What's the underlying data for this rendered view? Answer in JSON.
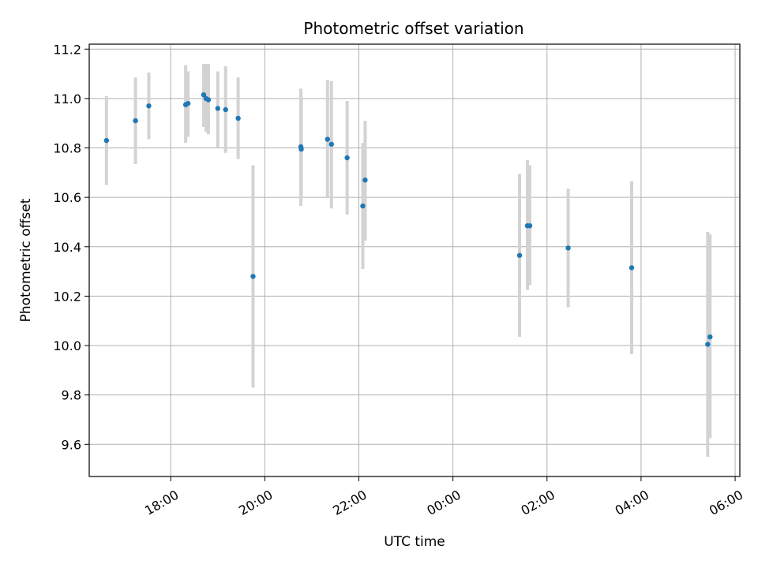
{
  "chart_data": {
    "type": "scatter",
    "title": "Photometric offset variation",
    "xlabel": "UTC time",
    "ylabel": "Photometric offset",
    "x_unit": "UTC datetime",
    "xlim": [
      "2000-01-01T16:16:00",
      "2000-01-02T06:06:00"
    ],
    "ylim": [
      9.47,
      11.22
    ],
    "grid": true,
    "x_ticks": [
      {
        "label": "18:00",
        "value": "2000-01-01T18:00:00"
      },
      {
        "label": "20:00",
        "value": "2000-01-01T20:00:00"
      },
      {
        "label": "22:00",
        "value": "2000-01-01T22:00:00"
      },
      {
        "label": "00:00",
        "value": "2000-01-02T00:00:00"
      },
      {
        "label": "02:00",
        "value": "2000-01-02T02:00:00"
      },
      {
        "label": "04:00",
        "value": "2000-01-02T04:00:00"
      },
      {
        "label": "06:00",
        "value": "2000-01-02T06:00:00"
      }
    ],
    "y_ticks": [
      {
        "label": "9.6",
        "value": 9.6
      },
      {
        "label": "9.8",
        "value": 9.8
      },
      {
        "label": "10.0",
        "value": 10.0
      },
      {
        "label": "10.2",
        "value": 10.2
      },
      {
        "label": "10.4",
        "value": 10.4
      },
      {
        "label": "10.6",
        "value": 10.6
      },
      {
        "label": "10.8",
        "value": 10.8
      },
      {
        "label": "11.0",
        "value": 11.0
      },
      {
        "label": "11.2",
        "value": 11.2
      }
    ],
    "point_color": "#1f77b4",
    "errorbar_color": "#d3d3d3",
    "points": [
      {
        "x": "2000-01-01T16:38:00",
        "y": 10.83,
        "yerr_low": 10.65,
        "yerr_high": 11.01
      },
      {
        "x": "2000-01-01T17:15:00",
        "y": 10.91,
        "yerr_low": 10.735,
        "yerr_high": 11.085
      },
      {
        "x": "2000-01-01T17:32:00",
        "y": 10.97,
        "yerr_low": 10.835,
        "yerr_high": 11.105
      },
      {
        "x": "2000-01-01T18:19:00",
        "y": 10.975,
        "yerr_low": 10.82,
        "yerr_high": 11.135
      },
      {
        "x": "2000-01-01T18:22:00",
        "y": 10.98,
        "yerr_low": 10.845,
        "yerr_high": 11.11
      },
      {
        "x": "2000-01-01T18:42:00",
        "y": 11.015,
        "yerr_low": 10.885,
        "yerr_high": 11.14
      },
      {
        "x": "2000-01-01T18:45:00",
        "y": 11.0,
        "yerr_low": 10.865,
        "yerr_high": 11.14
      },
      {
        "x": "2000-01-01T18:48:00",
        "y": 10.995,
        "yerr_low": 10.855,
        "yerr_high": 11.14
      },
      {
        "x": "2000-01-01T19:00:00",
        "y": 10.96,
        "yerr_low": 10.8,
        "yerr_high": 11.11
      },
      {
        "x": "2000-01-01T19:10:00",
        "y": 10.955,
        "yerr_low": 10.78,
        "yerr_high": 11.13
      },
      {
        "x": "2000-01-01T19:26:00",
        "y": 10.92,
        "yerr_low": 10.755,
        "yerr_high": 11.085
      },
      {
        "x": "2000-01-01T19:45:00",
        "y": 10.28,
        "yerr_low": 9.83,
        "yerr_high": 10.73
      },
      {
        "x": "2000-01-01T20:46:00",
        "y": 10.805,
        "yerr_low": 10.565,
        "yerr_high": 11.04
      },
      {
        "x": "2000-01-01T20:46:30",
        "y": 10.795,
        "yerr_low": 10.6,
        "yerr_high": 11.0
      },
      {
        "x": "2000-01-01T21:20:00",
        "y": 10.835,
        "yerr_low": 10.6,
        "yerr_high": 11.075
      },
      {
        "x": "2000-01-01T21:25:00",
        "y": 10.815,
        "yerr_low": 10.555,
        "yerr_high": 11.07
      },
      {
        "x": "2000-01-01T21:45:00",
        "y": 10.76,
        "yerr_low": 10.53,
        "yerr_high": 10.99
      },
      {
        "x": "2000-01-01T22:05:00",
        "y": 10.565,
        "yerr_low": 10.31,
        "yerr_high": 10.82
      },
      {
        "x": "2000-01-01T22:08:00",
        "y": 10.67,
        "yerr_low": 10.425,
        "yerr_high": 10.91
      },
      {
        "x": "2000-01-02T01:25:00",
        "y": 10.365,
        "yerr_low": 10.035,
        "yerr_high": 10.695
      },
      {
        "x": "2000-01-02T01:35:00",
        "y": 10.485,
        "yerr_low": 10.225,
        "yerr_high": 10.75
      },
      {
        "x": "2000-01-02T01:38:00",
        "y": 10.485,
        "yerr_low": 10.245,
        "yerr_high": 10.73
      },
      {
        "x": "2000-01-02T02:27:00",
        "y": 10.395,
        "yerr_low": 10.155,
        "yerr_high": 10.635
      },
      {
        "x": "2000-01-02T03:48:00",
        "y": 10.315,
        "yerr_low": 9.965,
        "yerr_high": 10.665
      },
      {
        "x": "2000-01-02T05:25:00",
        "y": 10.005,
        "yerr_low": 9.55,
        "yerr_high": 10.46
      },
      {
        "x": "2000-01-02T05:28:00",
        "y": 10.035,
        "yerr_low": 9.625,
        "yerr_high": 10.45
      }
    ]
  }
}
